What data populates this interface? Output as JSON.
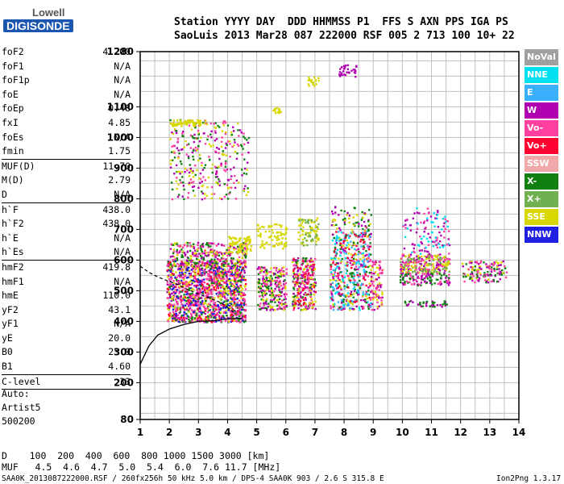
{
  "logo": {
    "top": "Lowell",
    "bottom": "DIGISONDE"
  },
  "header": {
    "row1": "Station YYYY DAY  DDD HHMMSS P1  FFS S AXN PPS IGA PS",
    "row2": "SaoLuis 2013 Mar28 087 222000 RSF 005 2 713 100 10+ 22"
  },
  "params": [
    {
      "label": "foF2",
      "value": "4.200"
    },
    {
      "label": "foF1",
      "value": "N/A"
    },
    {
      "label": "foF1p",
      "value": "N/A"
    },
    {
      "label": "foE",
      "value": "N/A"
    },
    {
      "label": "foEp",
      "value": "0.48"
    },
    {
      "label": "fxI",
      "value": "4.85"
    },
    {
      "label": "foEs",
      "value": "N/A"
    },
    {
      "label": "fmin",
      "value": "1.75"
    },
    {
      "sep": true
    },
    {
      "label": "MUF(D)",
      "value": "11.70"
    },
    {
      "label": "M(D)",
      "value": "2.79"
    },
    {
      "label": "D",
      "value": "N/A"
    },
    {
      "sep": true
    },
    {
      "label": "h`F",
      "value": "438.0"
    },
    {
      "label": "h`F2",
      "value": "438.0"
    },
    {
      "label": "h`E",
      "value": "N/A"
    },
    {
      "label": "h`Es",
      "value": "N/A"
    },
    {
      "sep": true
    },
    {
      "label": "hmF2",
      "value": "419.8"
    },
    {
      "label": "hmF1",
      "value": "N/A"
    },
    {
      "label": "hmE",
      "value": "110.0"
    },
    {
      "label": "yF2",
      "value": "43.1"
    },
    {
      "label": "yF1",
      "value": "N/A"
    },
    {
      "label": "yE",
      "value": "20.0"
    },
    {
      "label": "B0",
      "value": "25.9"
    },
    {
      "label": "B1",
      "value": "4.60"
    },
    {
      "sep": true
    },
    {
      "label": "C-level",
      "value": "33"
    },
    {
      "sep": true
    }
  ],
  "auto": {
    "l1": "Auto:",
    "l2": "Artist5",
    "l3": "500200"
  },
  "legend": [
    {
      "label": "NoVal",
      "color": "#a0a0a0"
    },
    {
      "label": "NNE",
      "color": "#00e0f0"
    },
    {
      "label": "E",
      "color": "#3ab0ff"
    },
    {
      "label": "W",
      "color": "#b000b0"
    },
    {
      "label": "Vo-",
      "color": "#ff40a0"
    },
    {
      "label": "Vo+",
      "color": "#ff0030"
    },
    {
      "label": "SSW",
      "color": "#f0a8a8"
    },
    {
      "label": "X-",
      "color": "#108010"
    },
    {
      "label": "X+",
      "color": "#70b050"
    },
    {
      "label": "SSE",
      "color": "#d8d800"
    },
    {
      "label": "NNW",
      "color": "#2020e0"
    }
  ],
  "bottom": {
    "drow": "D    100  200  400  600  800 1000 1500 3000 [km]",
    "murow": "MUF   4.5  4.6  4.7  5.0  5.4  6.0  7.6 11.7 [MHz]",
    "footer_left": "SAA0K_2013087222000.RSF / 260fx256h 50 kHz 5.0 km / DPS-4 SAA0K 903 / 2.6 S 315.8 E",
    "footer_right": "Ion2Png 1.3.17"
  },
  "chart_data": {
    "type": "scatter",
    "xlim": [
      1,
      14
    ],
    "ylim": [
      80,
      1280
    ],
    "x_ticks": [
      1,
      2,
      3,
      4,
      5,
      6,
      7,
      8,
      9,
      10,
      11,
      12,
      13,
      14
    ],
    "y_ticks": [
      80,
      200,
      300,
      400,
      500,
      600,
      700,
      800,
      900,
      1000,
      1100,
      1280
    ],
    "grid": true,
    "clusters": [
      {
        "x": [
          1.9,
          4.6
        ],
        "y": [
          400,
          600
        ],
        "colors": [
          "#ff40a0",
          "#b000b0",
          "#ff40a0",
          "#ff0030",
          "#d8d800",
          "#108010",
          "#2020e0"
        ],
        "n": 1400
      },
      {
        "x": [
          2.0,
          4.6
        ],
        "y": [
          580,
          660
        ],
        "colors": [
          "#d8d800",
          "#b000b0",
          "#108010",
          "#ff40a0"
        ],
        "n": 300
      },
      {
        "x": [
          4.0,
          4.8
        ],
        "y": [
          620,
          680
        ],
        "colors": [
          "#d8d800"
        ],
        "n": 80
      },
      {
        "x": [
          2.0,
          4.7
        ],
        "y": [
          800,
          1060
        ],
        "colors": [
          "#b000b0",
          "#d8d800",
          "#108010",
          "#ff40a0"
        ],
        "n": 320
      },
      {
        "x": [
          2.0,
          3.3
        ],
        "y": [
          1040,
          1060
        ],
        "colors": [
          "#d8d800"
        ],
        "n": 60
      },
      {
        "x": [
          5.0,
          6.0
        ],
        "y": [
          440,
          580
        ],
        "colors": [
          "#ff40a0",
          "#b000b0",
          "#108010",
          "#d8d800"
        ],
        "n": 260
      },
      {
        "x": [
          5.0,
          6.0
        ],
        "y": [
          640,
          720
        ],
        "colors": [
          "#d8d800"
        ],
        "n": 80
      },
      {
        "x": [
          5.4,
          5.8
        ],
        "y": [
          1080,
          1100
        ],
        "colors": [
          "#d8d800"
        ],
        "n": 15
      },
      {
        "x": [
          6.2,
          7.0
        ],
        "y": [
          440,
          610
        ],
        "colors": [
          "#ff40a0",
          "#b000b0",
          "#ff0030",
          "#108010",
          "#d8d800"
        ],
        "n": 300
      },
      {
        "x": [
          6.4,
          7.1
        ],
        "y": [
          650,
          740
        ],
        "colors": [
          "#d8d800",
          "#70b050"
        ],
        "n": 90
      },
      {
        "x": [
          6.7,
          7.1
        ],
        "y": [
          1170,
          1200
        ],
        "colors": [
          "#d8d800"
        ],
        "n": 20
      },
      {
        "x": [
          7.5,
          8.9
        ],
        "y": [
          440,
          700
        ],
        "colors": [
          "#ff40a0",
          "#b000b0",
          "#108010",
          "#d8d800",
          "#ff0030",
          "#3ab0ff",
          "#00e0f0"
        ],
        "n": 520
      },
      {
        "x": [
          7.5,
          8.9
        ],
        "y": [
          700,
          780
        ],
        "colors": [
          "#b000b0",
          "#108010",
          "#d8d800"
        ],
        "n": 60
      },
      {
        "x": [
          7.8,
          8.4
        ],
        "y": [
          1200,
          1240
        ],
        "colors": [
          "#b000b0"
        ],
        "n": 30
      },
      {
        "x": [
          8.9,
          9.3
        ],
        "y": [
          440,
          600
        ],
        "colors": [
          "#ff40a0",
          "#b000b0",
          "#d8d800"
        ],
        "n": 90
      },
      {
        "x": [
          9.9,
          11.6
        ],
        "y": [
          560,
          620
        ],
        "colors": [
          "#d8d800",
          "#ff40a0",
          "#b000b0",
          "#70b050"
        ],
        "n": 260
      },
      {
        "x": [
          9.9,
          11.6
        ],
        "y": [
          520,
          560
        ],
        "colors": [
          "#ff40a0",
          "#108010",
          "#b000b0"
        ],
        "n": 110
      },
      {
        "x": [
          10.0,
          11.6
        ],
        "y": [
          620,
          780
        ],
        "colors": [
          "#b000b0",
          "#ff40a0",
          "#00e0f0"
        ],
        "n": 120
      },
      {
        "x": [
          10.0,
          11.5
        ],
        "y": [
          450,
          470
        ],
        "colors": [
          "#108010",
          "#b000b0"
        ],
        "n": 40
      },
      {
        "x": [
          12.0,
          13.6
        ],
        "y": [
          530,
          600
        ],
        "colors": [
          "#ff40a0",
          "#b000b0",
          "#d8d800",
          "#108010"
        ],
        "n": 140
      }
    ],
    "virtual_height_curve": {
      "x": [
        1.0,
        1.3,
        1.6,
        2.0,
        2.5,
        3.0,
        3.5,
        4.0,
        4.5
      ],
      "y": [
        260,
        320,
        355,
        375,
        390,
        400,
        402,
        408,
        410
      ]
    },
    "profile_dashed": {
      "x": [
        1.0,
        1.3,
        1.6,
        2.0,
        2.3,
        2.6,
        3.0,
        3.4,
        3.8,
        4.2
      ],
      "y": [
        580,
        560,
        545,
        530,
        520,
        505,
        490,
        475,
        460,
        430
      ]
    }
  }
}
